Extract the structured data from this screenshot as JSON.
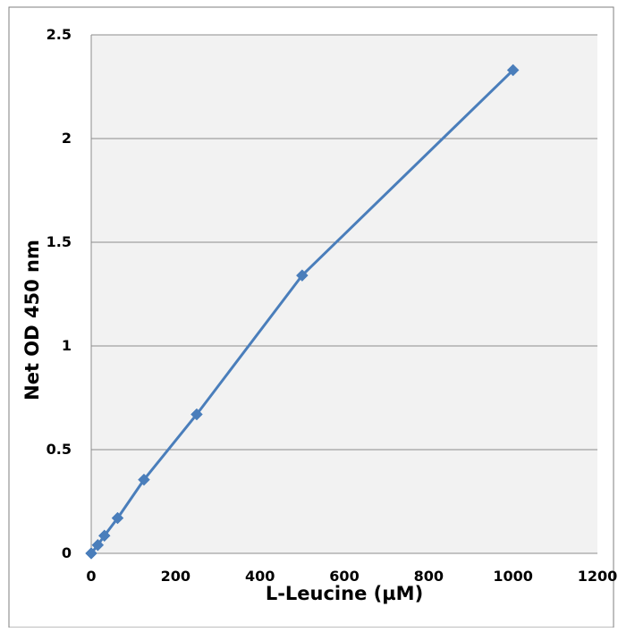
{
  "chart_data": {
    "type": "line",
    "title": "",
    "xlabel": "L-Leucine (µM)",
    "ylabel": "Net OD 450 nm",
    "xlim": [
      0,
      1200
    ],
    "ylim": [
      0,
      2.5
    ],
    "x_ticks": [
      0,
      200,
      400,
      600,
      800,
      1000,
      1200
    ],
    "x_tick_labels": [
      "0",
      "200",
      "400",
      "600",
      "800",
      "1000",
      "1200"
    ],
    "y_ticks": [
      0,
      0.5,
      1,
      1.5,
      2,
      2.5
    ],
    "y_tick_labels": [
      "0",
      "0.5",
      "1",
      "1.5",
      "2",
      "2.5"
    ],
    "grid": "horizontal major gridlines",
    "legend": "none",
    "marker": "diamond",
    "colors": {
      "series": "#4a7ebb",
      "plot_background": "#f2f2f2",
      "gridline": "#8c8c8c",
      "border": "#7f7f7f"
    },
    "series": [
      {
        "x": [
          0,
          15.6,
          31.25,
          62.5,
          125,
          250,
          500,
          1000
        ],
        "y": [
          0.0,
          0.04,
          0.085,
          0.17,
          0.355,
          0.67,
          1.34,
          2.33
        ]
      }
    ]
  }
}
